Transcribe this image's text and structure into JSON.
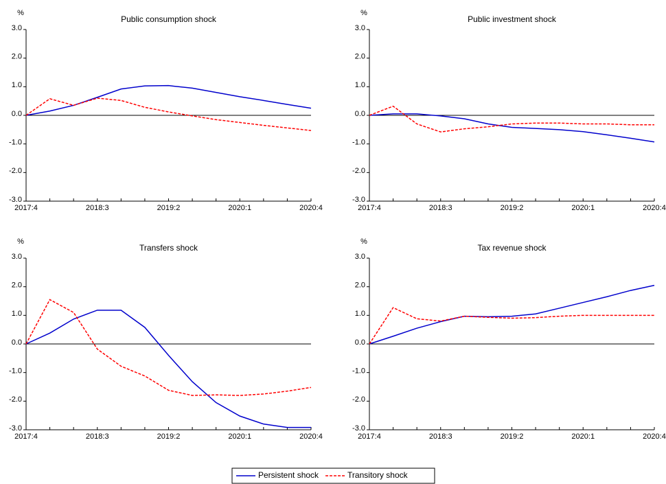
{
  "chart_data": [
    {
      "type": "line",
      "title": "Public consumption shock",
      "y_unit": "%",
      "categories": [
        "2017:4",
        null,
        null,
        "2018:3",
        null,
        null,
        "2019:2",
        null,
        null,
        "2020:1",
        null,
        null,
        "2020:4"
      ],
      "ylim": [
        -3,
        3
      ],
      "yticks": [
        {
          "value": -3,
          "label": "-3.0"
        },
        {
          "value": -2,
          "label": "-2.0"
        },
        {
          "value": -1,
          "label": "-1.0"
        },
        {
          "value": 0,
          "label": "0.0"
        },
        {
          "value": 1,
          "label": "1.0"
        },
        {
          "value": 2,
          "label": "2.0"
        },
        {
          "value": 3,
          "label": "3.0"
        }
      ],
      "series": [
        {
          "name": "Persistent shock",
          "color": "#0000cc",
          "dashed": false,
          "values": [
            0,
            0.15,
            0.35,
            0.63,
            0.92,
            1.03,
            1.04,
            0.95,
            0.8,
            0.65,
            0.52,
            0.38,
            0.25
          ]
        },
        {
          "name": "Transitory shock",
          "color": "#ff0000",
          "dashed": true,
          "values": [
            0,
            0.58,
            0.35,
            0.6,
            0.52,
            0.28,
            0.12,
            -0.02,
            -0.15,
            -0.25,
            -0.35,
            -0.44,
            -0.53
          ]
        }
      ]
    },
    {
      "type": "line",
      "title": "Public investment shock",
      "y_unit": "%",
      "categories": [
        "2017:4",
        null,
        null,
        "2018:3",
        null,
        null,
        "2019:2",
        null,
        null,
        "2020:1",
        null,
        null,
        "2020:4"
      ],
      "ylim": [
        -3,
        3
      ],
      "yticks": [
        {
          "value": -3,
          "label": "-3.0"
        },
        {
          "value": -2,
          "label": "-2.0"
        },
        {
          "value": -1,
          "label": "-1.0"
        },
        {
          "value": 0,
          "label": "0.0"
        },
        {
          "value": 1,
          "label": "1.0"
        },
        {
          "value": 2,
          "label": "2.0"
        },
        {
          "value": 3,
          "label": "3.0"
        }
      ],
      "series": [
        {
          "name": "Persistent shock",
          "color": "#0000cc",
          "dashed": false,
          "values": [
            0,
            0.05,
            0.05,
            -0.02,
            -0.12,
            -0.3,
            -0.42,
            -0.46,
            -0.5,
            -0.57,
            -0.68,
            -0.8,
            -0.93
          ]
        },
        {
          "name": "Transitory shock",
          "color": "#ff0000",
          "dashed": true,
          "values": [
            0,
            0.32,
            -0.3,
            -0.58,
            -0.47,
            -0.4,
            -0.3,
            -0.27,
            -0.27,
            -0.3,
            -0.3,
            -0.33,
            -0.33
          ]
        }
      ]
    },
    {
      "type": "line",
      "title": "Transfers shock",
      "y_unit": "%",
      "categories": [
        "2017:4",
        null,
        null,
        "2018:3",
        null,
        null,
        "2019:2",
        null,
        null,
        "2020:1",
        null,
        null,
        "2020:4"
      ],
      "ylim": [
        -3,
        3
      ],
      "yticks": [
        {
          "value": -3,
          "label": "-3.0"
        },
        {
          "value": -2,
          "label": "-2.0"
        },
        {
          "value": -1,
          "label": "-1.0"
        },
        {
          "value": 0,
          "label": "0.0"
        },
        {
          "value": 1,
          "label": "1.0"
        },
        {
          "value": 2,
          "label": "2.0"
        },
        {
          "value": 3,
          "label": "3.0"
        }
      ],
      "series": [
        {
          "name": "Persistent shock",
          "color": "#0000cc",
          "dashed": false,
          "values": [
            0,
            0.38,
            0.87,
            1.18,
            1.18,
            0.58,
            -0.4,
            -1.32,
            -2.05,
            -2.52,
            -2.8,
            -2.92,
            -2.92
          ]
        },
        {
          "name": "Transitory shock",
          "color": "#ff0000",
          "dashed": true,
          "values": [
            0,
            1.55,
            1.1,
            -0.18,
            -0.78,
            -1.12,
            -1.62,
            -1.8,
            -1.78,
            -1.8,
            -1.75,
            -1.65,
            -1.52
          ]
        }
      ]
    },
    {
      "type": "line",
      "title": "Tax revenue shock",
      "y_unit": "%",
      "categories": [
        "2017:4",
        null,
        null,
        "2018:3",
        null,
        null,
        "2019:2",
        null,
        null,
        "2020:1",
        null,
        null,
        "2020:4"
      ],
      "ylim": [
        -3,
        3
      ],
      "yticks": [
        {
          "value": -3,
          "label": "-3.0"
        },
        {
          "value": -2,
          "label": "-2.0"
        },
        {
          "value": -1,
          "label": "-1.0"
        },
        {
          "value": 0,
          "label": "0.0"
        },
        {
          "value": 1,
          "label": "1.0"
        },
        {
          "value": 2,
          "label": "2.0"
        },
        {
          "value": 3,
          "label": "3.0"
        }
      ],
      "series": [
        {
          "name": "Persistent shock",
          "color": "#0000cc",
          "dashed": false,
          "values": [
            0,
            0.27,
            0.55,
            0.78,
            0.97,
            0.95,
            0.97,
            1.05,
            1.25,
            1.45,
            1.65,
            1.87,
            2.05
          ]
        },
        {
          "name": "Transitory shock",
          "color": "#ff0000",
          "dashed": true,
          "values": [
            0,
            1.27,
            0.88,
            0.8,
            0.97,
            0.93,
            0.9,
            0.92,
            0.97,
            1.0,
            1.0,
            1.0,
            1.0
          ]
        }
      ]
    }
  ]
}
